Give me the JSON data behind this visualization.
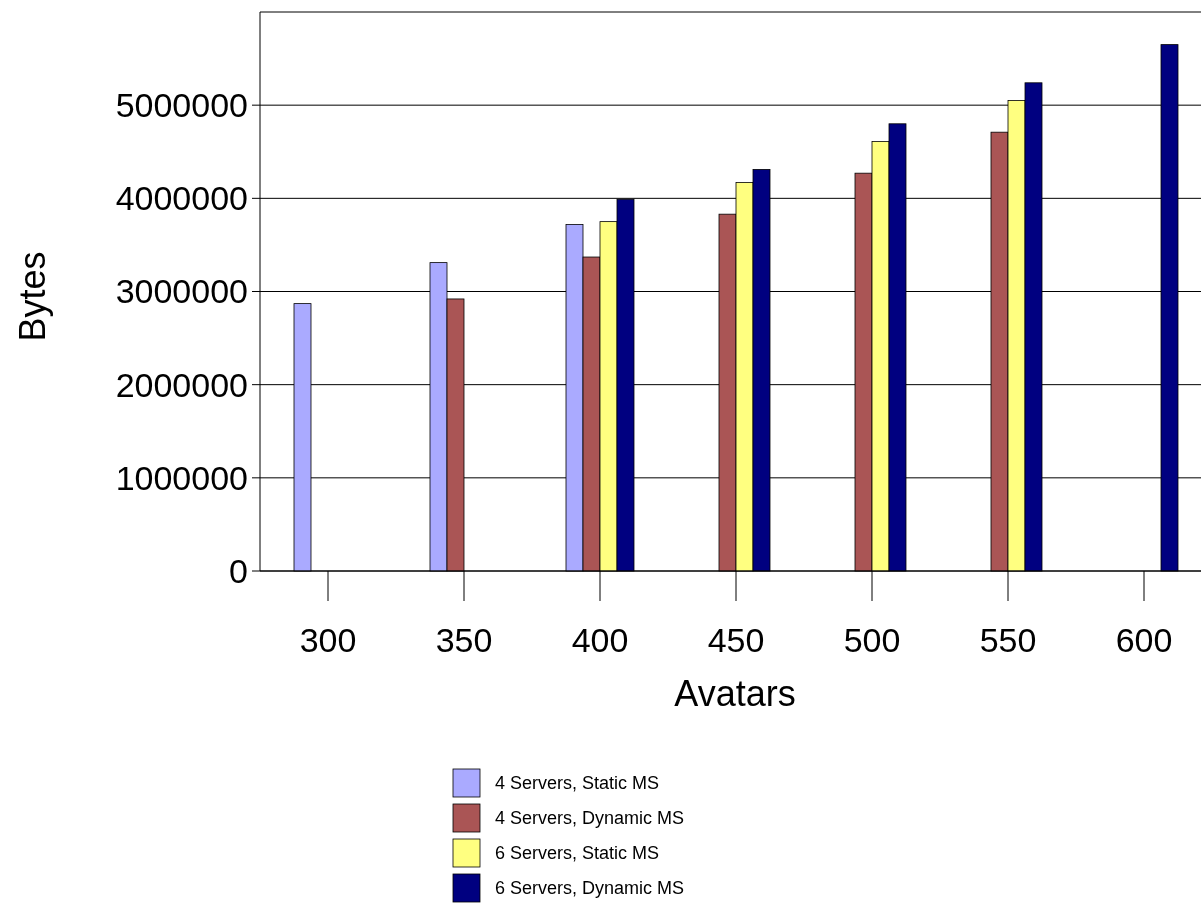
{
  "chart_data": {
    "type": "bar",
    "xlabel": "Avatars",
    "ylabel": "Bytes",
    "categories": [
      "300",
      "350",
      "400",
      "450",
      "500",
      "550",
      "600"
    ],
    "series": [
      {
        "name": "4 Servers, Static MS",
        "color": "#aaaaff",
        "values": [
          2870000,
          3310000,
          3720000,
          null,
          null,
          null,
          null
        ]
      },
      {
        "name": "4 Servers, Dynamic MS",
        "color": "#aa5555",
        "values": [
          null,
          2920000,
          3370000,
          3830000,
          4270000,
          4710000,
          null
        ]
      },
      {
        "name": "6 Servers, Static MS",
        "color": "#ffff80",
        "values": [
          null,
          null,
          3750000,
          4170000,
          4610000,
          5050000,
          null
        ]
      },
      {
        "name": "6 Servers, Dynamic MS",
        "color": "#000080",
        "values": [
          null,
          null,
          3990000,
          4310000,
          4800000,
          5240000,
          5650000
        ]
      }
    ],
    "ylim": [
      0,
      6000000
    ],
    "yticks": [
      0,
      1000000,
      2000000,
      3000000,
      4000000,
      5000000
    ],
    "grid": "y",
    "legend": "bottom"
  }
}
